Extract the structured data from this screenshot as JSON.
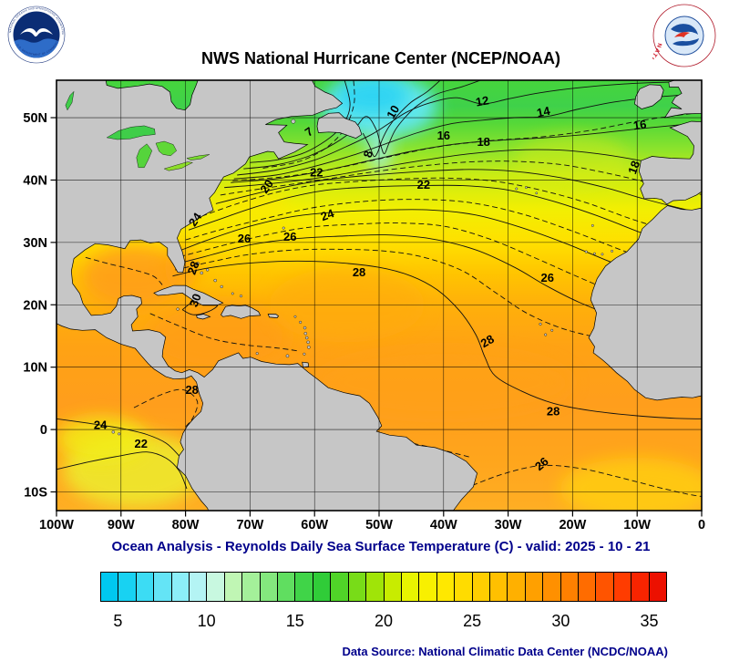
{
  "header": {
    "title": "NWS National Hurricane Center (NCEP/NOAA)",
    "noaa_logo": {
      "ring_text_top": "NATIONAL OCEANIC AND ATMOSPHERIC ADMINISTRATION",
      "ring_text_bottom": "U.S. DEPARTMENT OF COMMERCE"
    },
    "nws_logo": {
      "ring_text": "NATIONAL WEATHER SERVICE"
    }
  },
  "colors": {
    "caption_blue": "#00008b",
    "land_gray": "#c6c6c6",
    "title_black": "#000000"
  },
  "chart_data": {
    "type": "heatmap",
    "title": "NWS National Hurricane Center (NCEP/NOAA)",
    "subtitle": "Ocean Analysis - Reynolds Daily Sea Surface Temperature (C) - valid: 2025 - 10 - 21",
    "variable": "Reynolds Daily Sea Surface Temperature",
    "units": "C",
    "valid_date": "2025 - 10 - 21",
    "grid": true,
    "contour_interval_c": 2,
    "x_axis": {
      "range_deg": [
        -100,
        0
      ],
      "ticks": [
        {
          "label": "100W",
          "lon": -100
        },
        {
          "label": "90W",
          "lon": -90
        },
        {
          "label": "80W",
          "lon": -80
        },
        {
          "label": "70W",
          "lon": -70
        },
        {
          "label": "60W",
          "lon": -60
        },
        {
          "label": "50W",
          "lon": -50
        },
        {
          "label": "40W",
          "lon": -40
        },
        {
          "label": "30W",
          "lon": -30
        },
        {
          "label": "20W",
          "lon": -20
        },
        {
          "label": "10W",
          "lon": -10
        },
        {
          "label": "0",
          "lon": 0
        }
      ]
    },
    "y_axis": {
      "range_deg": [
        -13,
        56
      ],
      "ticks": [
        {
          "label": "50N",
          "lat": 50
        },
        {
          "label": "40N",
          "lat": 40
        },
        {
          "label": "30N",
          "lat": 30
        },
        {
          "label": "20N",
          "lat": 20
        },
        {
          "label": "10N",
          "lat": 10
        },
        {
          "label": "0",
          "lat": 0
        },
        {
          "label": "10S",
          "lat": -10
        }
      ]
    },
    "colorbar": {
      "min": 4,
      "max": 36,
      "ticks": [
        {
          "label": "5",
          "value": 5
        },
        {
          "label": "10",
          "value": 10
        },
        {
          "label": "15",
          "value": 15
        },
        {
          "label": "20",
          "value": 20
        },
        {
          "label": "25",
          "value": 25
        },
        {
          "label": "30",
          "value": 30
        },
        {
          "label": "35",
          "value": 35
        }
      ],
      "colors": [
        "#00c8f0",
        "#18d2f2",
        "#3cdcf4",
        "#64e4f6",
        "#8ceef8",
        "#b4f4f4",
        "#c8f8e0",
        "#c0f6b4",
        "#a4f09a",
        "#84e87e",
        "#60de60",
        "#40d448",
        "#30cc38",
        "#50d428",
        "#78dc18",
        "#a0e408",
        "#c8ec00",
        "#e8f400",
        "#f8f000",
        "#ffe800",
        "#ffdc00",
        "#ffce00",
        "#ffc000",
        "#ffb000",
        "#ffa000",
        "#ff9000",
        "#ff8000",
        "#ff6c00",
        "#ff5400",
        "#ff3c00",
        "#f82400",
        "#ec1000"
      ]
    },
    "contour_labels": [
      {
        "value": "10",
        "lon": -47.3,
        "lat": 50.6,
        "rot": -60
      },
      {
        "value": "12",
        "lon": -33.9,
        "lat": 52.0,
        "rot": -10
      },
      {
        "value": "14",
        "lon": -24.4,
        "lat": 50.3,
        "rot": -12
      },
      {
        "value": "16",
        "lon": -9.5,
        "lat": 48.2,
        "rot": -8
      },
      {
        "value": "16",
        "lon": -40.0,
        "lat": 46.5,
        "rot": 0
      },
      {
        "value": "18",
        "lon": -33.8,
        "lat": 45.5,
        "rot": 0
      },
      {
        "value": "18",
        "lon": -9.9,
        "lat": 41.8,
        "rot": -70
      },
      {
        "value": "7",
        "lon": -60.5,
        "lat": 47.2,
        "rot": -35
      },
      {
        "value": "8",
        "lon": -51.1,
        "lat": 44.0,
        "rot": -75
      },
      {
        "value": "20",
        "lon": -66.9,
        "lat": 38.6,
        "rot": -55
      },
      {
        "value": "22",
        "lon": -59.7,
        "lat": 40.6,
        "rot": 0
      },
      {
        "value": "22",
        "lon": -43.1,
        "lat": 38.6,
        "rot": 0
      },
      {
        "value": "24",
        "lon": -57.8,
        "lat": 33.8,
        "rot": -20
      },
      {
        "value": "24",
        "lon": -78.0,
        "lat": 33.3,
        "rot": -55
      },
      {
        "value": "26",
        "lon": -70.9,
        "lat": 30.0,
        "rot": 0
      },
      {
        "value": "26",
        "lon": -63.8,
        "lat": 30.3,
        "rot": 0
      },
      {
        "value": "28",
        "lon": -53.1,
        "lat": 24.6,
        "rot": 0
      },
      {
        "value": "28",
        "lon": -78.2,
        "lat": 25.7,
        "rot": -70
      },
      {
        "value": "30",
        "lon": -77.9,
        "lat": 20.5,
        "rot": -70
      },
      {
        "value": "26",
        "lon": -23.9,
        "lat": 23.7,
        "rot": 0
      },
      {
        "value": "28",
        "lon": -32.9,
        "lat": 13.6,
        "rot": -30
      },
      {
        "value": "28",
        "lon": -79.0,
        "lat": 5.7,
        "rot": 0
      },
      {
        "value": "28",
        "lon": -23.0,
        "lat": 2.3,
        "rot": 0
      },
      {
        "value": "24",
        "lon": -93.2,
        "lat": 0.1,
        "rot": 0
      },
      {
        "value": "22",
        "lon": -86.9,
        "lat": -2.9,
        "rot": 0
      },
      {
        "value": "26",
        "lon": -24.4,
        "lat": -6.0,
        "rot": -40
      }
    ],
    "data_source": "Data Source: National Climatic Data Center (NCDC/NOAA)"
  }
}
